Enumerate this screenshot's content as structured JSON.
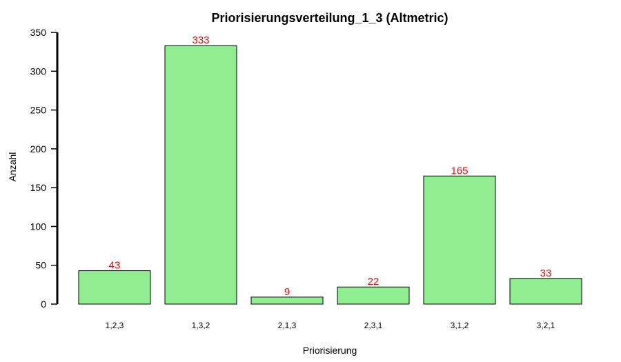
{
  "chart_data": {
    "type": "bar",
    "title": "Priorisierungsverteilung_1_3 (Altmetric)",
    "xlabel": "Priorisierung",
    "ylabel": "Anzahl",
    "categories": [
      "1,2,3",
      "1,3,2",
      "2,1,3",
      "2,3,1",
      "3,1,2",
      "3,2,1"
    ],
    "values": [
      43,
      333,
      9,
      22,
      165,
      33
    ],
    "ylim": [
      0,
      350
    ],
    "yticks": [
      0,
      50,
      100,
      150,
      200,
      250,
      300,
      350
    ],
    "grid": false,
    "legend": "none",
    "bar_color": "#90ee90",
    "bar_edge_color": "#000000",
    "data_label_color": "#ff0000"
  }
}
